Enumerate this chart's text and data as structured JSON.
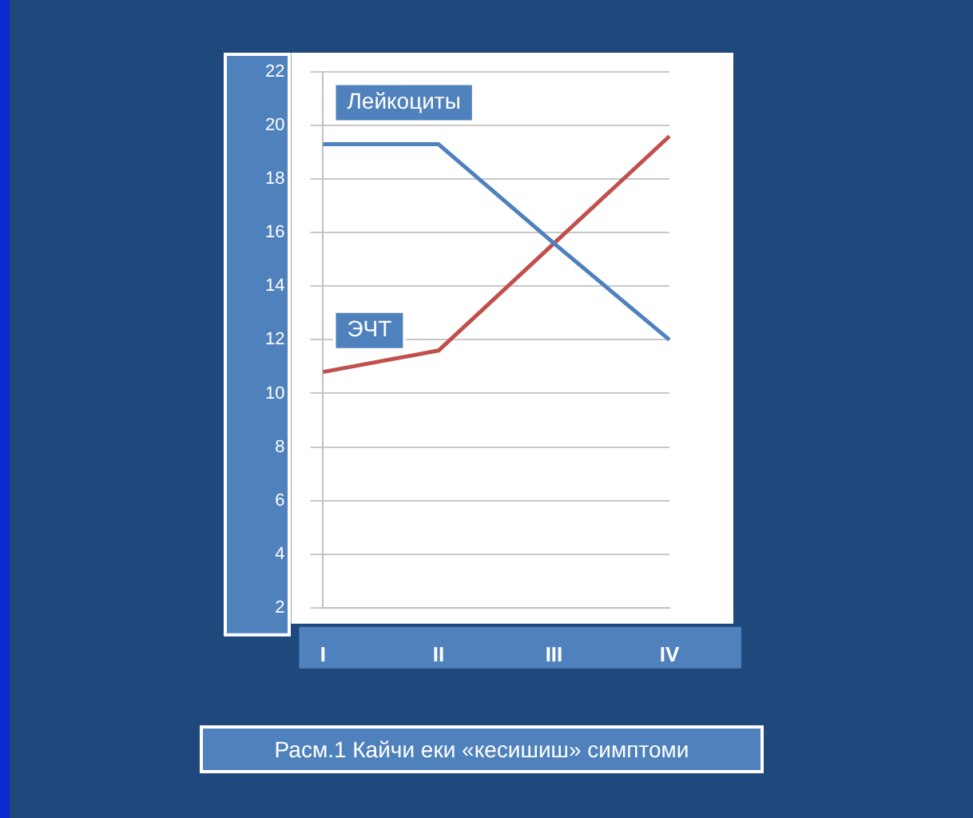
{
  "chart_data": {
    "type": "line",
    "annotations": [
      "Расм.1 Кайчи еки «кесишиш» симптоми"
    ],
    "categories": [
      "I",
      "II",
      "III",
      "IV"
    ],
    "series": [
      {
        "name": "Лейкоциты",
        "color": "#4f81bd",
        "values": [
          19.3,
          19.3,
          15.6,
          12.0
        ]
      },
      {
        "name": "ЭЧТ",
        "color": "#c0504d",
        "values": [
          10.8,
          11.6,
          15.6,
          19.6
        ]
      }
    ],
    "ylim": [
      2,
      22
    ],
    "yticks": [
      2,
      4,
      6,
      8,
      10,
      12,
      14,
      16,
      18,
      20,
      22
    ],
    "grid": "y",
    "legend": false,
    "marker": "none",
    "line_style": "solid"
  }
}
